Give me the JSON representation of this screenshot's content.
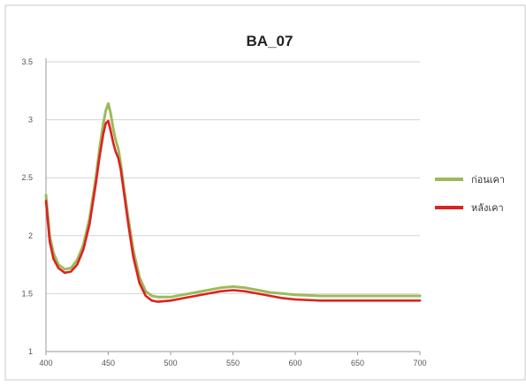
{
  "chart_data": {
    "type": "line",
    "title": "BA_07",
    "xlabel": "",
    "ylabel": "",
    "xlim": [
      400,
      700
    ],
    "ylim": [
      1,
      3.5
    ],
    "x_ticks": [
      "400",
      "450",
      "500",
      "550",
      "600",
      "650",
      "700"
    ],
    "y_ticks": [
      "1",
      "1.5",
      "2",
      "2.5",
      "3",
      "3.5"
    ],
    "grid": "horizontal",
    "legend_position": "right",
    "series": [
      {
        "name": "ก่อนเคา",
        "color": "#9bbb59",
        "x": [
          400,
          403,
          406,
          410,
          415,
          420,
          425,
          430,
          435,
          440,
          443,
          446,
          448,
          450,
          452,
          454,
          456,
          458,
          460,
          463,
          466,
          470,
          475,
          480,
          485,
          490,
          500,
          510,
          520,
          530,
          540,
          550,
          560,
          570,
          580,
          590,
          600,
          620,
          650,
          700
        ],
        "y": [
          2.35,
          2.0,
          1.85,
          1.75,
          1.71,
          1.72,
          1.79,
          1.92,
          2.15,
          2.5,
          2.75,
          2.97,
          3.08,
          3.14,
          3.05,
          2.92,
          2.82,
          2.75,
          2.62,
          2.38,
          2.15,
          1.88,
          1.64,
          1.52,
          1.48,
          1.47,
          1.47,
          1.49,
          1.51,
          1.53,
          1.55,
          1.56,
          1.55,
          1.53,
          1.51,
          1.5,
          1.49,
          1.48,
          1.48,
          1.48
        ]
      },
      {
        "name": "หลังเคา",
        "color": "#e02020",
        "x": [
          400,
          403,
          406,
          410,
          415,
          420,
          425,
          430,
          435,
          440,
          443,
          446,
          448,
          450,
          452,
          454,
          456,
          458,
          460,
          463,
          466,
          470,
          475,
          480,
          485,
          490,
          500,
          510,
          520,
          530,
          540,
          550,
          560,
          570,
          580,
          590,
          600,
          620,
          650,
          700
        ],
        "y": [
          2.3,
          1.95,
          1.8,
          1.72,
          1.68,
          1.69,
          1.75,
          1.88,
          2.1,
          2.45,
          2.68,
          2.88,
          2.97,
          2.99,
          2.9,
          2.8,
          2.72,
          2.67,
          2.57,
          2.34,
          2.1,
          1.82,
          1.59,
          1.48,
          1.44,
          1.43,
          1.44,
          1.46,
          1.48,
          1.5,
          1.52,
          1.53,
          1.52,
          1.5,
          1.48,
          1.46,
          1.45,
          1.44,
          1.44,
          1.44
        ]
      }
    ]
  }
}
